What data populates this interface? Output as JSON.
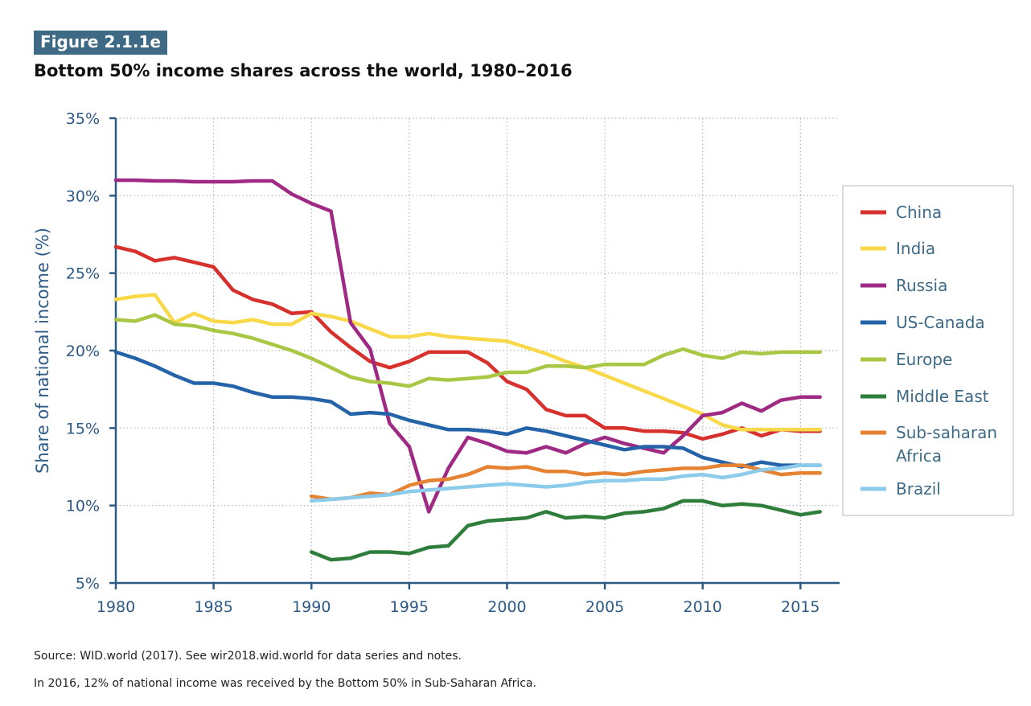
{
  "figure_label": "Figure 2.1.1e",
  "title": "Bottom 50% income shares across the world, 1980–2016",
  "source": "Source: WID.world (2017). See wir2018.wid.world for data series and notes.",
  "note": "In 2016, 12% of national income was received by the Bottom 50% in Sub-Saharan Africa.",
  "colors": {
    "axis": "#2e5a86",
    "grid": "#b5b5b5",
    "label_bg": "#3e6a86"
  },
  "chart_data": {
    "type": "line",
    "title": "Bottom 50% income shares across the world, 1980–2016",
    "xlabel": "",
    "ylabel": "Share of national income (%)",
    "xlim": [
      1980,
      2017
    ],
    "ylim": [
      5,
      35
    ],
    "grid": true,
    "legend_position": "right",
    "x_ticks": [
      1980,
      1985,
      1990,
      1995,
      2000,
      2005,
      2010,
      2015
    ],
    "x_tick_labels": [
      "1980",
      "1985",
      "1990",
      "1995",
      "2000",
      "2005",
      "2010",
      "2015"
    ],
    "y_ticks": [
      5,
      10,
      15,
      20,
      25,
      30,
      35
    ],
    "y_tick_labels": [
      "5%",
      "10%",
      "15%",
      "20%",
      "25%",
      "30%",
      "35%"
    ],
    "series": [
      {
        "name": "China",
        "color": "#d7312e",
        "legend_lines": [
          "China"
        ],
        "x": [
          1980,
          1981,
          1982,
          1983,
          1984,
          1985,
          1986,
          1987,
          1988,
          1989,
          1990,
          1991,
          1992,
          1993,
          1994,
          1995,
          1996,
          1997,
          1998,
          1999,
          2000,
          2001,
          2002,
          2003,
          2004,
          2005,
          2006,
          2007,
          2008,
          2009,
          2010,
          2011,
          2012,
          2013,
          2014,
          2015,
          2016
        ],
        "values": [
          26.7,
          26.4,
          25.8,
          26.0,
          25.7,
          25.4,
          23.9,
          23.3,
          23.0,
          22.4,
          22.5,
          21.2,
          20.2,
          19.3,
          18.9,
          19.3,
          19.9,
          19.9,
          19.9,
          19.2,
          18.0,
          17.5,
          16.2,
          15.8,
          15.8,
          15.0,
          15.0,
          14.8,
          14.8,
          14.7,
          14.3,
          14.6,
          15.0,
          14.5,
          14.9,
          14.8,
          14.8
        ]
      },
      {
        "name": "India",
        "color": "#f9d949",
        "legend_lines": [
          "India"
        ],
        "x": [
          1980,
          1981,
          1982,
          1983,
          1984,
          1985,
          1986,
          1987,
          1988,
          1989,
          1990,
          1991,
          1992,
          1993,
          1994,
          1995,
          1996,
          1997,
          1998,
          1999,
          2000,
          2001,
          2002,
          2003,
          2004,
          2005,
          2006,
          2007,
          2008,
          2009,
          2010,
          2011,
          2012,
          2013,
          2014,
          2015,
          2016
        ],
        "values": [
          23.3,
          23.5,
          23.6,
          21.8,
          22.4,
          21.9,
          21.8,
          22.0,
          21.7,
          21.7,
          22.4,
          22.2,
          21.9,
          21.4,
          20.9,
          20.9,
          21.1,
          20.9,
          20.8,
          20.7,
          20.6,
          20.2,
          19.8,
          19.3,
          18.9,
          18.4,
          17.9,
          17.4,
          16.9,
          16.4,
          15.9,
          15.2,
          14.9,
          14.9,
          14.9,
          14.9,
          14.9
        ]
      },
      {
        "name": "Russia",
        "color": "#9e2a84",
        "legend_lines": [
          "Russia"
        ],
        "x": [
          1980,
          1981,
          1982,
          1983,
          1984,
          1985,
          1986,
          1987,
          1988,
          1989,
          1990,
          1991,
          1992,
          1993,
          1994,
          1995,
          1996,
          1997,
          1998,
          1999,
          2000,
          2001,
          2002,
          2003,
          2004,
          2005,
          2006,
          2007,
          2008,
          2009,
          2010,
          2011,
          2012,
          2013,
          2014,
          2015,
          2016
        ],
        "values": [
          31.0,
          31.0,
          30.95,
          30.95,
          30.9,
          30.9,
          30.9,
          30.95,
          30.95,
          30.1,
          29.5,
          29.0,
          21.8,
          20.1,
          15.3,
          13.8,
          9.6,
          12.4,
          14.4,
          14.0,
          13.5,
          13.4,
          13.8,
          13.4,
          14.0,
          14.4,
          14.0,
          13.7,
          13.4,
          14.5,
          15.8,
          16.0,
          16.6,
          16.1,
          16.8,
          17.0,
          17.0
        ]
      },
      {
        "name": "US-Canada",
        "color": "#2563a8",
        "legend_lines": [
          "US-Canada"
        ],
        "x": [
          1980,
          1981,
          1982,
          1983,
          1984,
          1985,
          1986,
          1987,
          1988,
          1989,
          1990,
          1991,
          1992,
          1993,
          1994,
          1995,
          1996,
          1997,
          1998,
          1999,
          2000,
          2001,
          2002,
          2003,
          2004,
          2005,
          2006,
          2007,
          2008,
          2009,
          2010,
          2011,
          2012,
          2013,
          2014,
          2015,
          2016
        ],
        "values": [
          19.9,
          19.5,
          19.0,
          18.4,
          17.9,
          17.9,
          17.7,
          17.3,
          17.0,
          17.0,
          16.9,
          16.7,
          15.9,
          16.0,
          15.9,
          15.5,
          15.2,
          14.9,
          14.9,
          14.8,
          14.6,
          15.0,
          14.8,
          14.5,
          14.2,
          13.9,
          13.6,
          13.8,
          13.8,
          13.7,
          13.1,
          12.8,
          12.5,
          12.8,
          12.6,
          12.6,
          12.6
        ]
      },
      {
        "name": "Europe",
        "color": "#a9c744",
        "legend_lines": [
          "Europe"
        ],
        "x": [
          1980,
          1981,
          1982,
          1983,
          1984,
          1985,
          1986,
          1987,
          1988,
          1989,
          1990,
          1991,
          1992,
          1993,
          1994,
          1995,
          1996,
          1997,
          1998,
          1999,
          2000,
          2001,
          2002,
          2003,
          2004,
          2005,
          2006,
          2007,
          2008,
          2009,
          2010,
          2011,
          2012,
          2013,
          2014,
          2015,
          2016
        ],
        "values": [
          22.0,
          21.9,
          22.3,
          21.7,
          21.6,
          21.3,
          21.1,
          20.8,
          20.4,
          20.0,
          19.5,
          18.9,
          18.3,
          18.0,
          17.9,
          17.7,
          18.2,
          18.1,
          18.2,
          18.3,
          18.6,
          18.6,
          19.0,
          19.0,
          18.9,
          19.1,
          19.1,
          19.1,
          19.7,
          20.1,
          19.7,
          19.5,
          19.9,
          19.8,
          19.9,
          19.9,
          19.9
        ]
      },
      {
        "name": "Middle East",
        "color": "#2e7d3a",
        "legend_lines": [
          "Middle East"
        ],
        "x": [
          1990,
          1991,
          1992,
          1993,
          1994,
          1995,
          1996,
          1997,
          1998,
          1999,
          2000,
          2001,
          2002,
          2003,
          2004,
          2005,
          2006,
          2007,
          2008,
          2009,
          2010,
          2011,
          2012,
          2013,
          2014,
          2015,
          2016
        ],
        "values": [
          7.0,
          6.5,
          6.6,
          7.0,
          7.0,
          6.9,
          7.3,
          7.4,
          8.7,
          9.0,
          9.1,
          9.2,
          9.6,
          9.2,
          9.3,
          9.2,
          9.5,
          9.6,
          9.8,
          10.3,
          10.3,
          10.0,
          10.1,
          10.0,
          9.7,
          9.4,
          9.6
        ]
      },
      {
        "name": "Sub-saharan Africa",
        "color": "#e68332",
        "legend_lines": [
          "Sub-saharan",
          "Africa"
        ],
        "x": [
          1990,
          1991,
          1992,
          1993,
          1994,
          1995,
          1996,
          1997,
          1998,
          1999,
          2000,
          2001,
          2002,
          2003,
          2004,
          2005,
          2006,
          2007,
          2008,
          2009,
          2010,
          2011,
          2012,
          2013,
          2014,
          2015,
          2016
        ],
        "values": [
          10.6,
          10.4,
          10.5,
          10.8,
          10.7,
          11.3,
          11.6,
          11.7,
          12.0,
          12.5,
          12.4,
          12.5,
          12.2,
          12.2,
          12.0,
          12.1,
          12.0,
          12.2,
          12.3,
          12.4,
          12.4,
          12.6,
          12.6,
          12.3,
          12.0,
          12.1,
          12.1
        ]
      },
      {
        "name": "Brazil",
        "color": "#8ccbea",
        "legend_lines": [
          "Brazil"
        ],
        "x": [
          1990,
          1991,
          1992,
          1993,
          1994,
          1995,
          1996,
          1997,
          1998,
          1999,
          2000,
          2001,
          2002,
          2003,
          2004,
          2005,
          2006,
          2007,
          2008,
          2009,
          2010,
          2011,
          2012,
          2013,
          2014,
          2015,
          2016
        ],
        "values": [
          10.3,
          10.4,
          10.5,
          10.6,
          10.7,
          10.9,
          11.0,
          11.1,
          11.2,
          11.3,
          11.4,
          11.3,
          11.2,
          11.3,
          11.5,
          11.6,
          11.6,
          11.7,
          11.7,
          11.9,
          12.0,
          11.8,
          12.0,
          12.3,
          12.4,
          12.6,
          12.6
        ]
      }
    ]
  }
}
